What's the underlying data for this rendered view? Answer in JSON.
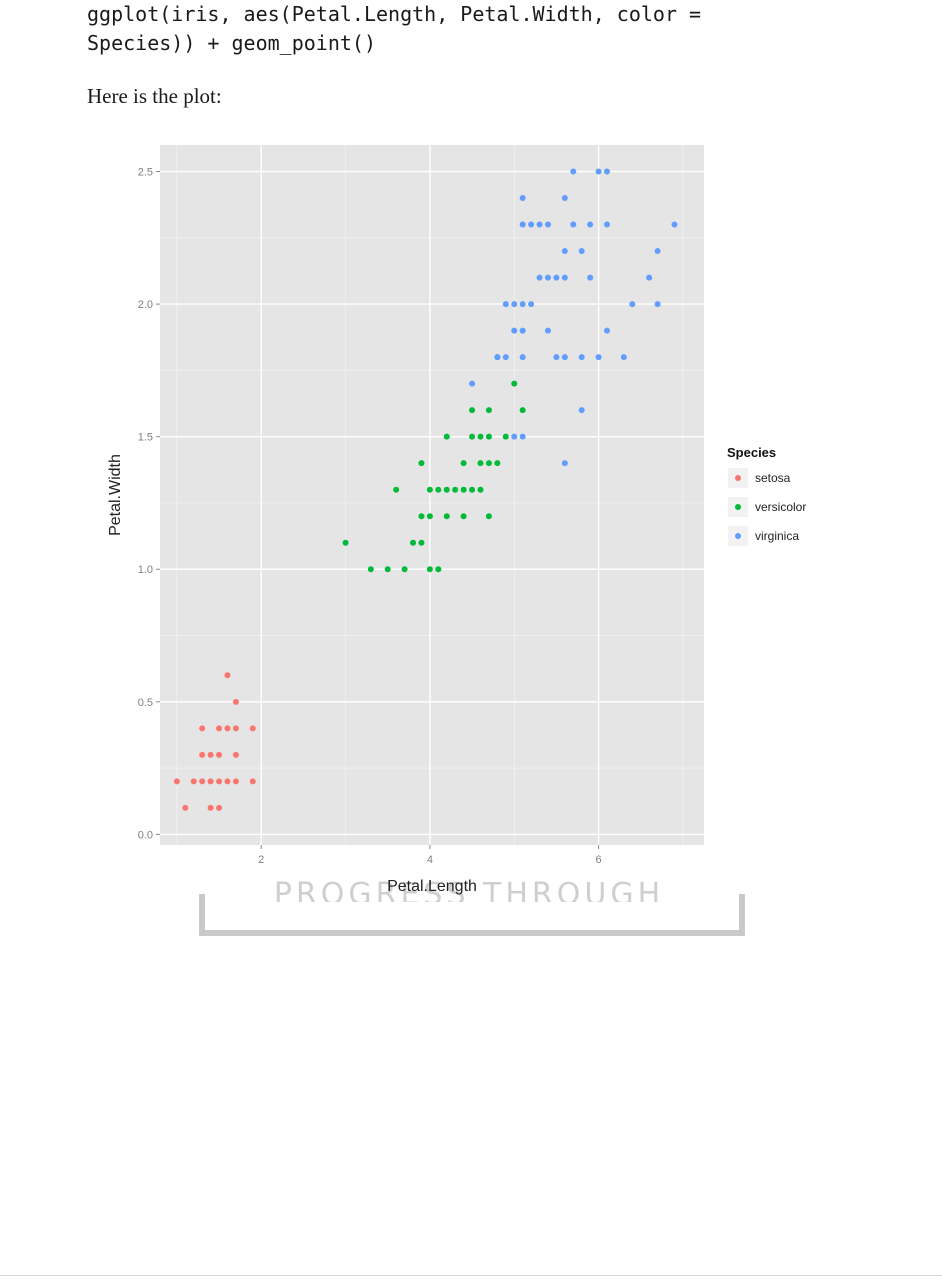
{
  "document": {
    "code": "ggplot(iris, aes(Petal.Length, Petal.Width, color =\nSpecies)) + geom_point()",
    "intro": "Here is the plot:",
    "watermark": "PROGRESS THROUGH KNOWLEDGE"
  },
  "chart_data": {
    "type": "scatter",
    "xlabel": "Petal.Length",
    "ylabel": "Petal.Width",
    "xlim": [
      0.8,
      7.25
    ],
    "ylim": [
      -0.04,
      2.6
    ],
    "xticks": [
      2,
      4,
      6
    ],
    "yticks": [
      0.0,
      0.5,
      1.0,
      1.5,
      2.0,
      2.5
    ],
    "xtick_labels": [
      "2",
      "4",
      "6"
    ],
    "ytick_labels": [
      "0.0",
      "0.5",
      "1.0",
      "1.5",
      "2.0",
      "2.5"
    ],
    "grid": true,
    "legend_title": "Species",
    "legend_position": "right",
    "colors": {
      "panel": "#e5e5e5",
      "grid": "#ffffff"
    },
    "series": [
      {
        "name": "setosa",
        "color": "#F8766D",
        "x": [
          1.0,
          1.1,
          1.2,
          1.3,
          1.4,
          1.5,
          1.6,
          1.7,
          1.9,
          1.4,
          1.5,
          1.3,
          1.4,
          1.5,
          1.7,
          1.3,
          1.5,
          1.6,
          1.7,
          1.9,
          1.7,
          1.6
        ],
        "y": [
          0.2,
          0.1,
          0.2,
          0.2,
          0.2,
          0.2,
          0.2,
          0.2,
          0.2,
          0.1,
          0.1,
          0.3,
          0.3,
          0.3,
          0.3,
          0.4,
          0.4,
          0.4,
          0.4,
          0.4,
          0.5,
          0.6
        ]
      },
      {
        "name": "versicolor",
        "color": "#00BA38",
        "x": [
          3.0,
          3.3,
          3.5,
          3.7,
          4.0,
          4.1,
          3.8,
          3.9,
          3.6,
          3.9,
          4.0,
          4.2,
          4.4,
          4.7,
          4.0,
          4.1,
          4.2,
          4.3,
          4.4,
          4.5,
          4.6,
          3.9,
          4.4,
          4.6,
          4.7,
          4.8,
          4.2,
          4.5,
          4.6,
          4.7,
          4.9,
          4.5,
          4.7,
          5.1,
          4.8,
          5.0
        ],
        "y": [
          1.1,
          1.0,
          1.0,
          1.0,
          1.0,
          1.0,
          1.1,
          1.1,
          1.3,
          1.2,
          1.2,
          1.2,
          1.2,
          1.2,
          1.3,
          1.3,
          1.3,
          1.3,
          1.3,
          1.3,
          1.3,
          1.4,
          1.4,
          1.4,
          1.4,
          1.4,
          1.5,
          1.5,
          1.5,
          1.5,
          1.5,
          1.6,
          1.6,
          1.6,
          1.8,
          1.7
        ]
      },
      {
        "name": "virginica",
        "color": "#619CFF",
        "x": [
          5.6,
          5.8,
          5.0,
          5.1,
          4.5,
          4.8,
          4.9,
          5.1,
          5.5,
          5.6,
          5.8,
          6.0,
          6.3,
          5.0,
          5.1,
          5.4,
          6.1,
          4.9,
          5.0,
          5.1,
          5.2,
          6.4,
          6.7,
          5.3,
          5.4,
          5.5,
          5.6,
          5.9,
          6.6,
          5.6,
          5.8,
          6.7,
          5.1,
          5.2,
          5.3,
          5.4,
          5.7,
          5.9,
          6.1,
          6.9,
          5.1,
          5.6,
          5.7,
          6.0,
          6.1
        ],
        "y": [
          1.4,
          1.6,
          1.5,
          1.5,
          1.7,
          1.8,
          1.8,
          1.8,
          1.8,
          1.8,
          1.8,
          1.8,
          1.8,
          1.9,
          1.9,
          1.9,
          1.9,
          2.0,
          2.0,
          2.0,
          2.0,
          2.0,
          2.0,
          2.1,
          2.1,
          2.1,
          2.1,
          2.1,
          2.1,
          2.2,
          2.2,
          2.2,
          2.3,
          2.3,
          2.3,
          2.3,
          2.3,
          2.3,
          2.3,
          2.3,
          2.4,
          2.4,
          2.5,
          2.5,
          2.5
        ]
      }
    ]
  }
}
